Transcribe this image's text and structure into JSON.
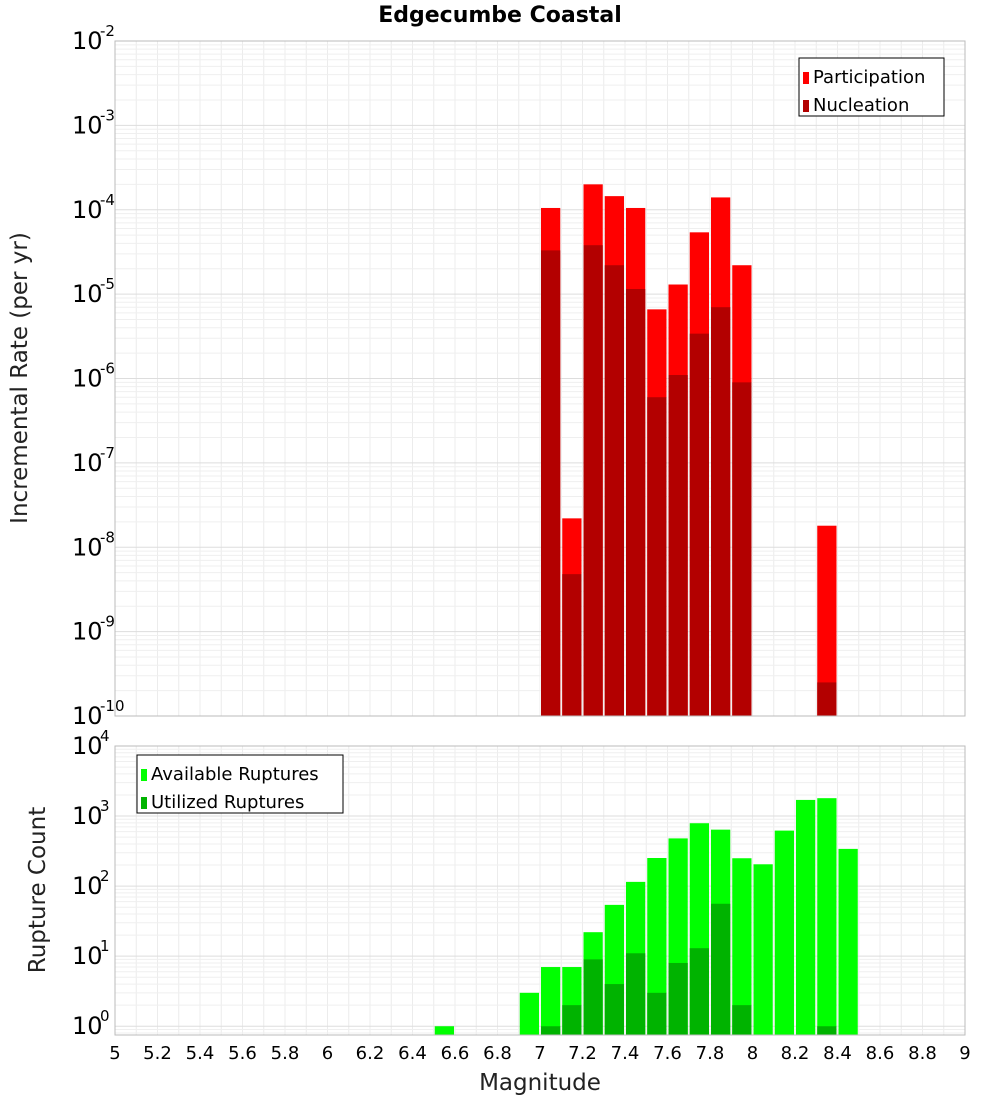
{
  "colors": {
    "participation": "#ff0000",
    "nucleation": "#b30000",
    "available": "#00ff00",
    "utilized": "#00b300"
  },
  "chart_data": [
    {
      "type": "bar",
      "title": "Edgecumbe Coastal",
      "xlabel": "",
      "ylabel": "Incremental Rate (per yr)",
      "yscale": "log",
      "ylim": [
        1e-10,
        0.01
      ],
      "xlim": [
        5,
        9
      ],
      "grid": true,
      "legend_placement": "top-right",
      "series": [
        {
          "name": "Participation",
          "x": [
            7.05,
            7.15,
            7.25,
            7.35,
            7.45,
            7.55,
            7.65,
            7.75,
            7.85,
            7.95,
            8.35
          ],
          "values": [
            0.000105,
            2.2e-08,
            0.0002,
            0.000145,
            0.000105,
            6.6e-06,
            1.3e-05,
            5.4e-05,
            0.00014,
            2.2e-05,
            1.8e-08
          ]
        },
        {
          "name": "Nucleation",
          "x": [
            7.05,
            7.15,
            7.25,
            7.35,
            7.45,
            7.55,
            7.65,
            7.75,
            7.85,
            7.95,
            8.35
          ],
          "values": [
            3.3e-05,
            4.8e-09,
            3.8e-05,
            2.2e-05,
            1.15e-05,
            6e-07,
            1.1e-06,
            3.4e-06,
            7e-06,
            9e-07,
            2.5e-10
          ]
        }
      ]
    },
    {
      "type": "bar",
      "title": "",
      "xlabel": "Magnitude",
      "ylabel": "Rupture Count",
      "yscale": "log",
      "ylim": [
        0.75,
        10000
      ],
      "xlim": [
        5,
        9
      ],
      "grid": true,
      "legend_placement": "top-left",
      "xticks": [
        "5",
        "5.2",
        "5.4",
        "5.6",
        "5.8",
        "6",
        "6.2",
        "6.4",
        "6.6",
        "6.8",
        "7",
        "7.2",
        "7.4",
        "7.6",
        "7.8",
        "8",
        "8.2",
        "8.4",
        "8.6",
        "8.8",
        "9"
      ],
      "series": [
        {
          "name": "Available Ruptures",
          "x": [
            6.55,
            6.95,
            7.05,
            7.15,
            7.25,
            7.35,
            7.45,
            7.55,
            7.65,
            7.75,
            7.85,
            7.95,
            8.05,
            8.15,
            8.25,
            8.35,
            8.45
          ],
          "values": [
            1,
            3,
            7,
            7,
            22,
            54,
            115,
            252,
            480,
            790,
            640,
            250,
            205,
            620,
            1700,
            1800,
            340
          ]
        },
        {
          "name": "Utilized Ruptures",
          "x": [
            7.05,
            7.15,
            7.25,
            7.35,
            7.45,
            7.55,
            7.65,
            7.75,
            7.85,
            7.95,
            8.35
          ],
          "values": [
            1,
            2,
            9,
            4,
            11,
            3,
            8,
            13,
            56,
            2,
            1
          ]
        }
      ]
    }
  ]
}
